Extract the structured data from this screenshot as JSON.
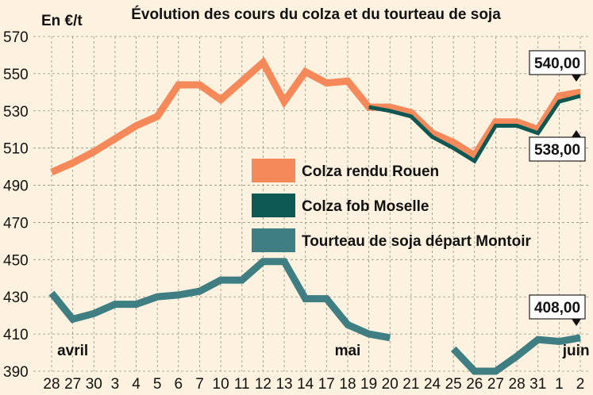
{
  "chart_data": {
    "type": "line",
    "title": "Évolution des cours du colza et du tourteau de soja",
    "unit_label": "En €/t",
    "ylim": [
      390,
      570
    ],
    "y_ticks": [
      390,
      410,
      430,
      450,
      470,
      490,
      510,
      530,
      550,
      570
    ],
    "grid": "dashed vertical and horizontal",
    "categories": [
      "28",
      "27",
      "30",
      "3",
      "4",
      "5",
      "6",
      "7",
      "10",
      "11",
      "12",
      "13",
      "14",
      "17",
      "18",
      "19",
      "20",
      "21",
      "24",
      "25",
      "26",
      "27",
      "28",
      "31",
      "1",
      "2"
    ],
    "month_labels": [
      {
        "label": "avril",
        "at_index": 1
      },
      {
        "label": "mai",
        "at_index": 14
      },
      {
        "label": "juin",
        "at_index": 24.8
      }
    ],
    "series": [
      {
        "name": "Colza rendu Rouen",
        "color": "#f5895a",
        "values": [
          497,
          502,
          508,
          515,
          522,
          527,
          544,
          544,
          536,
          546,
          556,
          535,
          551,
          545,
          546,
          532,
          532,
          529,
          518,
          513,
          506,
          524,
          524,
          520,
          538,
          540
        ]
      },
      {
        "name": "Colza fob Moselle",
        "color": "#0d5852",
        "values": [
          null,
          null,
          null,
          null,
          null,
          null,
          null,
          null,
          null,
          null,
          null,
          null,
          null,
          null,
          null,
          532,
          530,
          527,
          516,
          510,
          503,
          522,
          522,
          518,
          535,
          538
        ]
      },
      {
        "name": "Tourteau de soja départ Montoir",
        "color": "#3f7f83",
        "values": [
          432,
          418,
          421,
          426,
          426,
          430,
          431,
          433,
          439,
          439,
          449,
          449,
          429,
          429,
          415,
          410,
          408,
          null,
          null,
          402,
          390,
          390,
          398,
          407,
          406,
          408
        ]
      }
    ],
    "legend": "center",
    "callouts": [
      {
        "text": "540,00",
        "series": 0,
        "index": 25
      },
      {
        "text": "538,00",
        "series": 1,
        "index": 25
      },
      {
        "text": "408,00",
        "series": 2,
        "index": 25
      }
    ]
  }
}
